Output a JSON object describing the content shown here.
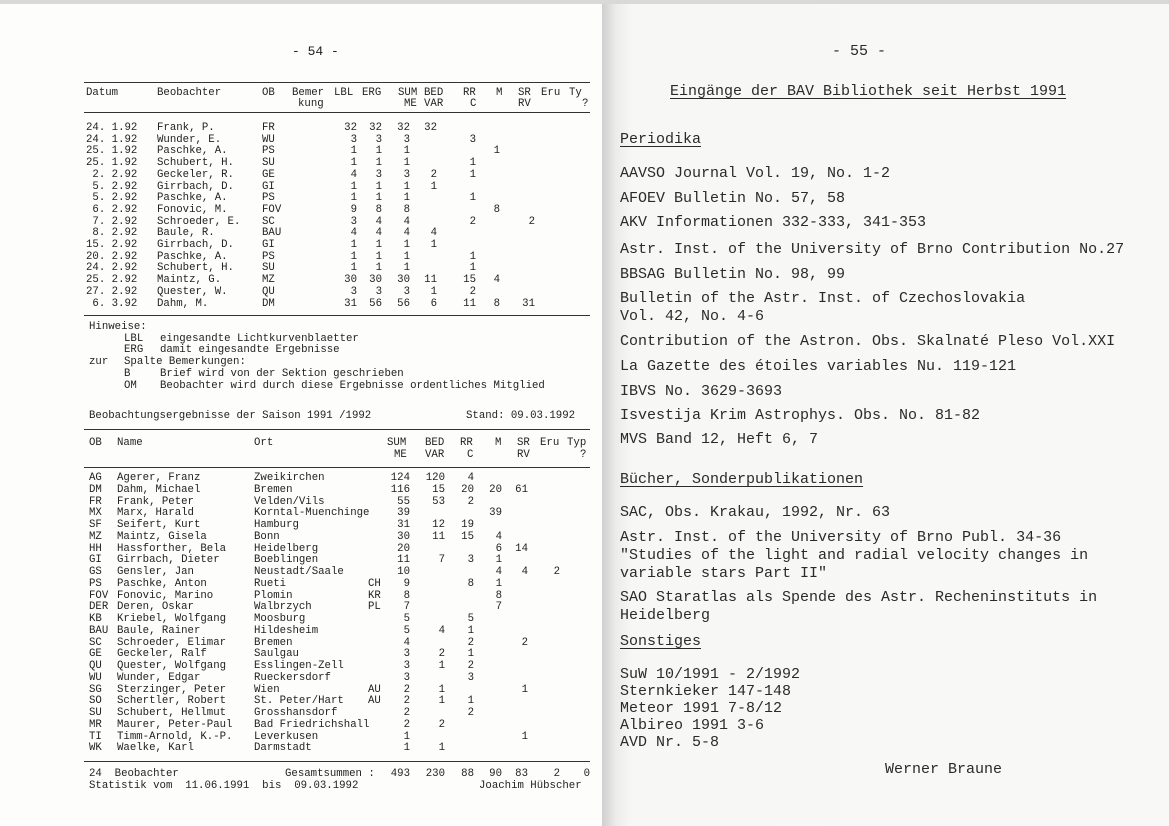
{
  "left_page": {
    "page_number": "- 54 -",
    "table1": {
      "headers": {
        "datum": "Datum",
        "beobachter": "Beobachter",
        "ob": "OB",
        "bemerkung_1": "Bemer",
        "bemerkung_2": "kung",
        "lbl": "LBL",
        "erg": "ERG",
        "sum_1": "SUM",
        "sum_2": "ME",
        "bed_1": "BED",
        "bed_2": "VAR",
        "rr_1": "RR",
        "rr_2": "C",
        "m": "M",
        "sr_1": "SR",
        "sr_2": "RV",
        "eru": "Eru",
        "ty_1": "Ty",
        "ty_2": "?"
      },
      "rows": [
        [
          "24. 1.92",
          "Frank, P.",
          "FR",
          "",
          "32",
          "32",
          "32",
          "32",
          "",
          "",
          "",
          ""
        ],
        [
          "24. 1.92",
          "Wunder, E.",
          "WU",
          "",
          "3",
          "3",
          "3",
          "",
          "3",
          "",
          "",
          ""
        ],
        [
          "25. 1.92",
          "Paschke, A.",
          "PS",
          "",
          "1",
          "1",
          "1",
          "",
          "",
          "1",
          "",
          ""
        ],
        [
          "25. 1.92",
          "Schubert, H.",
          "SU",
          "",
          "1",
          "1",
          "1",
          "",
          "1",
          "",
          "",
          ""
        ],
        [
          " 2. 2.92",
          "Geckeler, R.",
          "GE",
          "",
          "4",
          "3",
          "3",
          "2",
          "1",
          "",
          "",
          ""
        ],
        [
          " 5. 2.92",
          "Girrbach, D.",
          "GI",
          "",
          "1",
          "1",
          "1",
          "1",
          "",
          "",
          "",
          ""
        ],
        [
          " 5. 2.92",
          "Paschke, A.",
          "PS",
          "",
          "1",
          "1",
          "1",
          "",
          "1",
          "",
          "",
          ""
        ],
        [
          " 6. 2.92",
          "Fonovic, M.",
          "FOV",
          "",
          "9",
          "8",
          "8",
          "",
          "",
          "8",
          "",
          ""
        ],
        [
          " 7. 2.92",
          "Schroeder, E.",
          "SC",
          "",
          "3",
          "4",
          "4",
          "",
          "2",
          "",
          "2",
          ""
        ],
        [
          " 8. 2.92",
          "Baule, R.",
          "BAU",
          "",
          "4",
          "4",
          "4",
          "4",
          "",
          "",
          "",
          ""
        ],
        [
          "15. 2.92",
          "Girrbach, D.",
          "GI",
          "",
          "1",
          "1",
          "1",
          "1",
          "",
          "",
          "",
          ""
        ],
        [
          "20. 2.92",
          "Paschke, A.",
          "PS",
          "",
          "1",
          "1",
          "1",
          "",
          "1",
          "",
          "",
          ""
        ],
        [
          "24. 2.92",
          "Schubert, H.",
          "SU",
          "",
          "1",
          "1",
          "1",
          "",
          "1",
          "",
          "",
          ""
        ],
        [
          "25. 2.92",
          "Maintz, G.",
          "MZ",
          "",
          "30",
          "30",
          "30",
          "11",
          "15",
          "4",
          "",
          ""
        ],
        [
          "27. 2.92",
          "Quester, W.",
          "QU",
          "",
          "3",
          "3",
          "3",
          "1",
          "2",
          "",
          "",
          ""
        ],
        [
          " 6. 3.92",
          "Dahm, M.",
          "DM",
          "",
          "31",
          "56",
          "56",
          "6",
          "11",
          "8",
          "31",
          ""
        ]
      ]
    },
    "notes": [
      {
        "prefix": "Hinweise:",
        "key": "",
        "text": ""
      },
      {
        "prefix": "",
        "key": "LBL",
        "text": "eingesandte Lichtkurvenblaetter"
      },
      {
        "prefix": "",
        "key": "ERG",
        "text": "damit eingesandte Ergebnisse"
      },
      {
        "prefix": "zur",
        "key": "",
        "text": "Spalte Bemerkungen:"
      },
      {
        "prefix": "",
        "key": "B",
        "text": "Brief wird von der Sektion geschrieben"
      },
      {
        "prefix": "",
        "key": "OM",
        "text": "Beobachter wird durch diese Ergebnisse ordentliches Mitglied"
      }
    ],
    "table2": {
      "title": "Beobachtungsergebnisse der Saison 1991 /1992",
      "stand": "Stand: 09.03.1992",
      "headers": {
        "ob": "OB",
        "name": "Name",
        "ort": "Ort",
        "sum_1": "SUM",
        "sum_2": "ME",
        "bed_1": "BED",
        "bed_2": "VAR",
        "rr_1": "RR",
        "rr_2": "C",
        "m": "M",
        "sr_1": "SR",
        "sr_2": "RV",
        "eru": "Eru",
        "typ_1": "Typ",
        "typ_2": "?"
      },
      "rows": [
        [
          "AG",
          "Agerer, Franz",
          "Zweikirchen",
          "",
          "124",
          "120",
          "4",
          "",
          "",
          "",
          ""
        ],
        [
          "DM",
          "Dahm, Michael",
          "Bremen",
          "",
          "116",
          "15",
          "20",
          "20",
          "61",
          "",
          ""
        ],
        [
          "FR",
          "Frank, Peter",
          "Velden/Vils",
          "",
          "55",
          "53",
          "2",
          "",
          "",
          "",
          ""
        ],
        [
          "MX",
          "Marx, Harald",
          "Korntal-Muenchinge",
          "",
          "39",
          "",
          "",
          "39",
          "",
          "",
          ""
        ],
        [
          "SF",
          "Seifert, Kurt",
          "Hamburg",
          "",
          "31",
          "12",
          "19",
          "",
          "",
          "",
          ""
        ],
        [
          "MZ",
          "Maintz, Gisela",
          "Bonn",
          "",
          "30",
          "11",
          "15",
          "4",
          "",
          "",
          ""
        ],
        [
          "HH",
          "Hassforther, Bela",
          "Heidelberg",
          "",
          "20",
          "",
          "",
          "6",
          "14",
          "",
          ""
        ],
        [
          "GI",
          "Girrbach, Dieter",
          "Boeblingen",
          "",
          "11",
          "7",
          "3",
          "1",
          "",
          "",
          ""
        ],
        [
          "GS",
          "Gensler, Jan",
          "Neustadt/Saale",
          "",
          "10",
          "",
          "",
          "4",
          "4",
          "2",
          ""
        ],
        [
          "PS",
          "Paschke, Anton",
          "Rueti",
          "CH",
          "9",
          "",
          "8",
          "1",
          "",
          "",
          ""
        ],
        [
          "FOV",
          "Fonovic, Marino",
          "Plomin",
          "KR",
          "8",
          "",
          "",
          "8",
          "",
          "",
          ""
        ],
        [
          "DER",
          "Deren, Oskar",
          "Walbrzych",
          "PL",
          "7",
          "",
          "",
          "7",
          "",
          "",
          ""
        ],
        [
          "KB",
          "Kriebel, Wolfgang",
          "Moosburg",
          "",
          "5",
          "",
          "5",
          "",
          "",
          "",
          ""
        ],
        [
          "BAU",
          "Baule, Rainer",
          "Hildesheim",
          "",
          "5",
          "4",
          "1",
          "",
          "",
          "",
          ""
        ],
        [
          "SC",
          "Schroeder, Elimar",
          "Bremen",
          "",
          "4",
          "",
          "2",
          "",
          "2",
          "",
          ""
        ],
        [
          "GE",
          "Geckeler, Ralf",
          "Saulgau",
          "",
          "3",
          "2",
          "1",
          "",
          "",
          "",
          ""
        ],
        [
          "QU",
          "Quester, Wolfgang",
          "Esslingen-Zell",
          "",
          "3",
          "1",
          "2",
          "",
          "",
          "",
          ""
        ],
        [
          "WU",
          "Wunder, Edgar",
          "Rueckersdorf",
          "",
          "3",
          "",
          "3",
          "",
          "",
          "",
          ""
        ],
        [
          "SG",
          "Sterzinger, Peter",
          "Wien",
          "AU",
          "2",
          "1",
          "",
          "",
          "1",
          "",
          ""
        ],
        [
          "SO",
          "Schertler, Robert",
          "St. Peter/Hart",
          "AU",
          "2",
          "1",
          "1",
          "",
          "",
          "",
          ""
        ],
        [
          "SU",
          "Schubert, Hellmut",
          "Grosshansdorf",
          "",
          "2",
          "",
          "2",
          "",
          "",
          "",
          ""
        ],
        [
          "MR",
          "Maurer, Peter-Paul",
          "Bad Friedrichshall",
          "",
          "2",
          "2",
          "",
          "",
          "",
          "",
          ""
        ],
        [
          "TI",
          "Timm-Arnold, K.-P.",
          "Leverkusen",
          "",
          "1",
          "",
          "",
          "",
          "1",
          "",
          ""
        ],
        [
          "WK",
          "Waelke, Karl",
          "Darmstadt",
          "",
          "1",
          "1",
          "",
          "",
          "",
          "",
          ""
        ]
      ],
      "footer": {
        "observer_count": "24  Beobachter",
        "totals_label": "Gesamtsummen :",
        "totals": [
          "493",
          "230",
          "88",
          "90",
          "83",
          "2",
          "0"
        ],
        "period": "Statistik vom  11.06.1991  bis  09.03.1992",
        "author": "Joachim Hübscher"
      }
    }
  },
  "right_page": {
    "page_number": "- 55 -",
    "title": "Eingänge der BAV Bibliothek seit Herbst 1991",
    "sections": {
      "periodika": {
        "heading": "Periodika",
        "items": [
          "AAVSO Journal Vol. 19, No. 1-2",
          "AFOEV Bulletin No. 57, 58",
          "AKV Informationen 332-333, 341-353",
          "Astr. Inst. of the University of Brno Contribution No.27",
          "BBSAG Bulletin No. 98, 99",
          "Bulletin of the Astr. Inst. of Czechoslovakia\nVol. 42, No. 4-6",
          "Contribution of the Astron. Obs. Skalnaté Pleso Vol.XXI",
          "La Gazette des étoiles variables Nu. 119-121",
          "IBVS No. 3629-3693",
          "Isvestija Krim Astrophys. Obs. No. 81-82",
          "MVS Band 12, Heft 6, 7"
        ]
      },
      "buecher": {
        "heading": "Bücher, Sonderpublikationen",
        "items": [
          "SAC, Obs. Krakau, 1992, Nr. 63",
          "Astr. Inst. of the University of Brno Publ. 34-36\n\"Studies of the light and radial velocity changes in\nvariable stars Part II\"",
          "SAO Staratlas als Spende des Astr. Recheninstituts in\nHeidelberg"
        ]
      },
      "sonstiges": {
        "heading": "Sonstiges",
        "items": [
          "SuW 10/1991 - 2/1992",
          "Sternkieker 147-148",
          "Meteor 1991 7-8/12",
          "Albireo 1991 3-6",
          "AVD Nr. 5-8"
        ]
      }
    },
    "signature": "Werner Braune"
  }
}
